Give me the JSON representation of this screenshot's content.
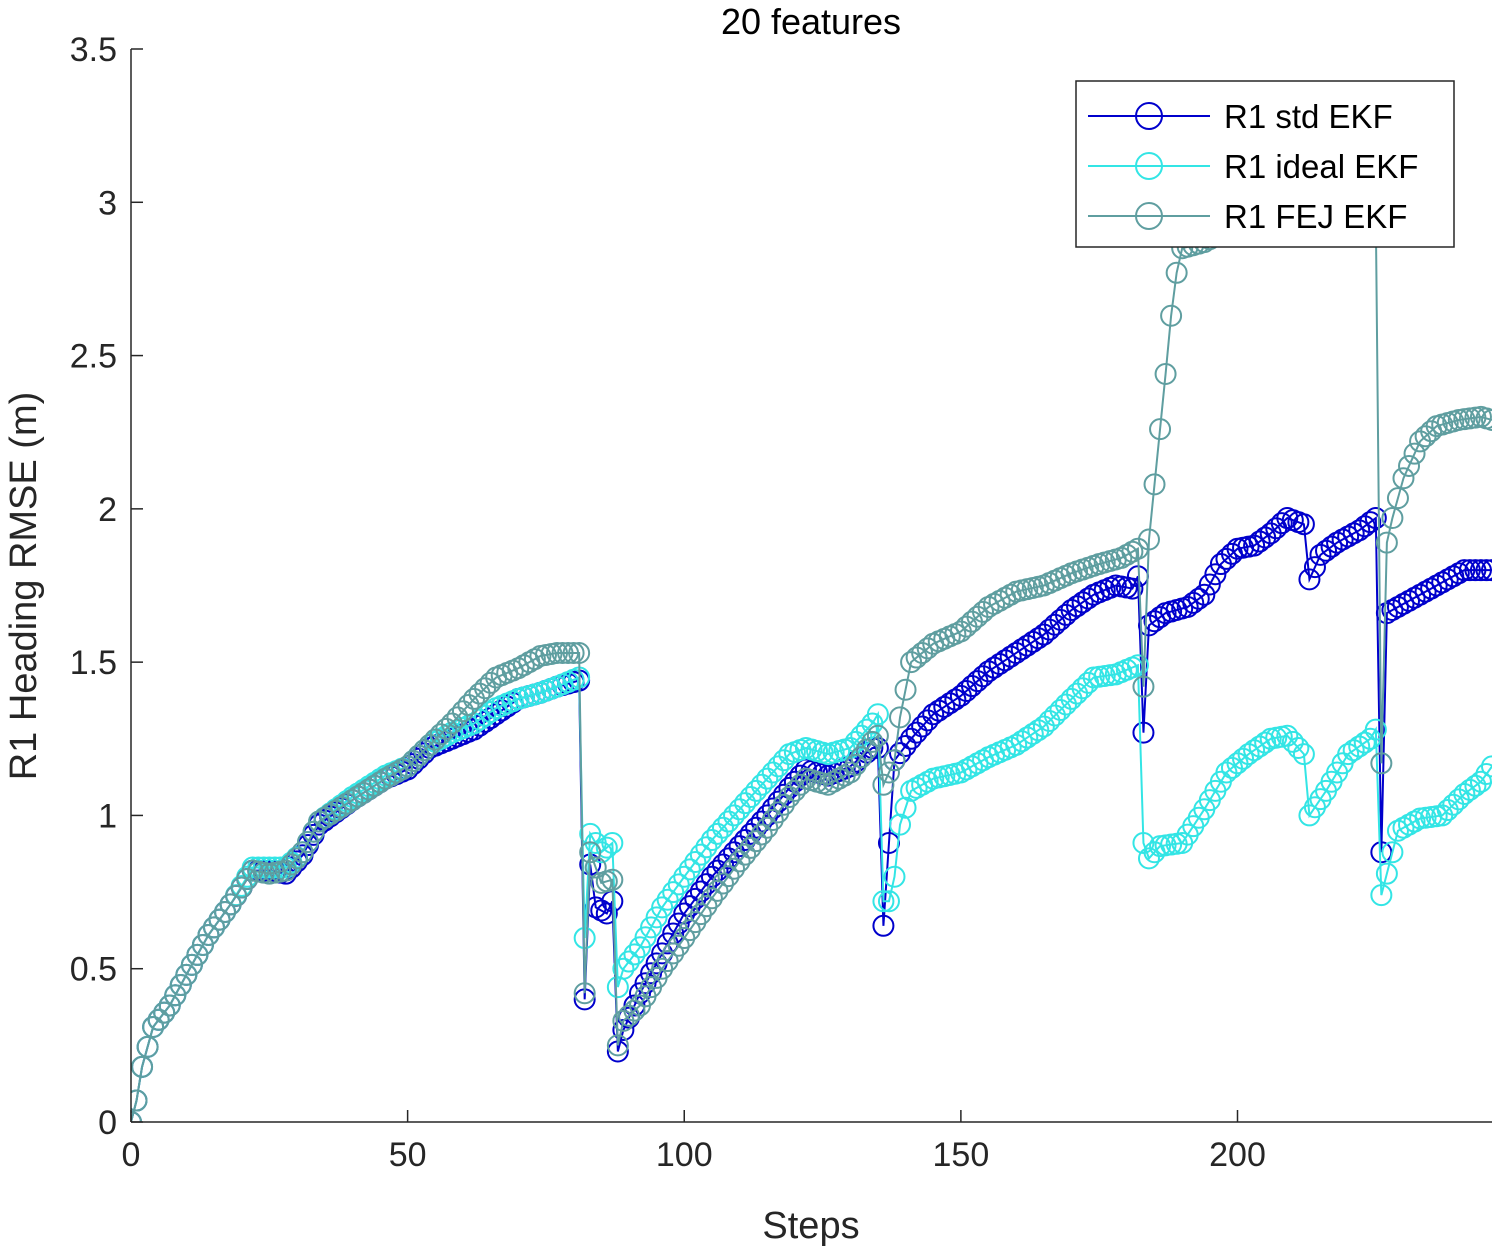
{
  "chart_data": {
    "type": "line",
    "title": "20 features",
    "xlabel": "Steps",
    "ylabel": "R1 Heading RMSE (m)",
    "xlim": [
      0,
      246
    ],
    "ylim": [
      0,
      3.5
    ],
    "xticks": [
      0,
      50,
      100,
      150,
      200
    ],
    "xtick_labels": [
      "0",
      "50",
      "100",
      "150",
      "200"
    ],
    "yticks": [
      0,
      0.5,
      1,
      1.5,
      2,
      2.5,
      3,
      3.5
    ],
    "ytick_labels": [
      "0",
      "0.5",
      "1",
      "1.5",
      "2",
      "2.5",
      "3",
      "3.5"
    ],
    "grid": false,
    "legend_position": "top-right",
    "marker": "circle",
    "series": [
      {
        "name": "R1 std EKF",
        "color": "#0000cc",
        "knots": [
          [
            0,
            0
          ],
          [
            1,
            0.07
          ],
          [
            2,
            0.18
          ],
          [
            4,
            0.31
          ],
          [
            7,
            0.38
          ],
          [
            10,
            0.48
          ],
          [
            14,
            0.61
          ],
          [
            18,
            0.71
          ],
          [
            22,
            0.82
          ],
          [
            25,
            0.82
          ],
          [
            28,
            0.81
          ],
          [
            31,
            0.87
          ],
          [
            34,
            0.97
          ],
          [
            40,
            1.05
          ],
          [
            46,
            1.12
          ],
          [
            50,
            1.15
          ],
          [
            54,
            1.22
          ],
          [
            58,
            1.25
          ],
          [
            62,
            1.28
          ],
          [
            66,
            1.33
          ],
          [
            70,
            1.38
          ],
          [
            74,
            1.4
          ],
          [
            77,
            1.42
          ],
          [
            81,
            1.44
          ],
          [
            82,
            0.4
          ],
          [
            83,
            0.84
          ],
          [
            84,
            0.7
          ],
          [
            86,
            0.68
          ],
          [
            87,
            0.72
          ],
          [
            88,
            0.23
          ],
          [
            89,
            0.3
          ],
          [
            92,
            0.42
          ],
          [
            96,
            0.55
          ],
          [
            100,
            0.68
          ],
          [
            105,
            0.8
          ],
          [
            110,
            0.9
          ],
          [
            115,
            1.0
          ],
          [
            119,
            1.09
          ],
          [
            122,
            1.15
          ],
          [
            126,
            1.13
          ],
          [
            130,
            1.16
          ],
          [
            134,
            1.22
          ],
          [
            135,
            1.22
          ],
          [
            136,
            0.64
          ],
          [
            138,
            1.18
          ],
          [
            141,
            1.25
          ],
          [
            145,
            1.33
          ],
          [
            150,
            1.39
          ],
          [
            155,
            1.47
          ],
          [
            160,
            1.53
          ],
          [
            165,
            1.59
          ],
          [
            170,
            1.67
          ],
          [
            174,
            1.72
          ],
          [
            178,
            1.75
          ],
          [
            181,
            1.74
          ],
          [
            182,
            1.78
          ],
          [
            183,
            1.27
          ],
          [
            184,
            1.62
          ],
          [
            187,
            1.66
          ],
          [
            191,
            1.68
          ],
          [
            194,
            1.72
          ],
          [
            197,
            1.82
          ],
          [
            200,
            1.87
          ],
          [
            203,
            1.88
          ],
          [
            206,
            1.92
          ],
          [
            209,
            1.97
          ],
          [
            212,
            1.95
          ],
          [
            213,
            1.77
          ],
          [
            215,
            1.85
          ],
          [
            218,
            1.89
          ],
          [
            222,
            1.93
          ],
          [
            225,
            1.97
          ],
          [
            226,
            0.88
          ],
          [
            227,
            1.66
          ],
          [
            231,
            1.7
          ],
          [
            236,
            1.75
          ],
          [
            241,
            1.8
          ],
          [
            246,
            1.8
          ]
        ]
      },
      {
        "name": "R1 ideal EKF",
        "color": "#33e5e5",
        "knots": [
          [
            0,
            0
          ],
          [
            1,
            0.07
          ],
          [
            2,
            0.18
          ],
          [
            4,
            0.31
          ],
          [
            7,
            0.38
          ],
          [
            10,
            0.48
          ],
          [
            14,
            0.61
          ],
          [
            18,
            0.71
          ],
          [
            22,
            0.83
          ],
          [
            25,
            0.83
          ],
          [
            28,
            0.83
          ],
          [
            31,
            0.88
          ],
          [
            34,
            0.98
          ],
          [
            40,
            1.06
          ],
          [
            46,
            1.13
          ],
          [
            50,
            1.16
          ],
          [
            54,
            1.23
          ],
          [
            58,
            1.27
          ],
          [
            62,
            1.3
          ],
          [
            66,
            1.35
          ],
          [
            70,
            1.38
          ],
          [
            74,
            1.4
          ],
          [
            77,
            1.42
          ],
          [
            81,
            1.45
          ],
          [
            82,
            0.6
          ],
          [
            83,
            0.94
          ],
          [
            85,
            0.88
          ],
          [
            87,
            0.91
          ],
          [
            88,
            0.44
          ],
          [
            89,
            0.5
          ],
          [
            92,
            0.57
          ],
          [
            96,
            0.7
          ],
          [
            100,
            0.8
          ],
          [
            105,
            0.92
          ],
          [
            110,
            1.02
          ],
          [
            115,
            1.12
          ],
          [
            119,
            1.2
          ],
          [
            122,
            1.22
          ],
          [
            126,
            1.2
          ],
          [
            130,
            1.22
          ],
          [
            134,
            1.3
          ],
          [
            135,
            1.33
          ],
          [
            136,
            0.72
          ],
          [
            137,
            0.72
          ],
          [
            138,
            0.8
          ],
          [
            139,
            0.97
          ],
          [
            141,
            1.08
          ],
          [
            145,
            1.12
          ],
          [
            150,
            1.14
          ],
          [
            155,
            1.19
          ],
          [
            160,
            1.23
          ],
          [
            165,
            1.29
          ],
          [
            170,
            1.38
          ],
          [
            174,
            1.45
          ],
          [
            178,
            1.46
          ],
          [
            182,
            1.49
          ],
          [
            183,
            0.91
          ],
          [
            184,
            0.86
          ],
          [
            186,
            0.9
          ],
          [
            190,
            0.91
          ],
          [
            194,
            1.02
          ],
          [
            198,
            1.14
          ],
          [
            202,
            1.2
          ],
          [
            206,
            1.25
          ],
          [
            209,
            1.26
          ],
          [
            212,
            1.2
          ],
          [
            213,
            1.0
          ],
          [
            216,
            1.08
          ],
          [
            220,
            1.2
          ],
          [
            224,
            1.25
          ],
          [
            225,
            1.28
          ],
          [
            226,
            0.74
          ],
          [
            227,
            0.81
          ],
          [
            229,
            0.95
          ],
          [
            233,
            0.99
          ],
          [
            237,
            1.0
          ],
          [
            241,
            1.07
          ],
          [
            244,
            1.11
          ],
          [
            246,
            1.16
          ]
        ]
      },
      {
        "name": "R1 FEJ EKF",
        "color": "#5f9ea0",
        "knots": [
          [
            0,
            0
          ],
          [
            1,
            0.07
          ],
          [
            2,
            0.18
          ],
          [
            4,
            0.31
          ],
          [
            7,
            0.38
          ],
          [
            10,
            0.48
          ],
          [
            14,
            0.61
          ],
          [
            18,
            0.71
          ],
          [
            22,
            0.82
          ],
          [
            25,
            0.81
          ],
          [
            28,
            0.82
          ],
          [
            31,
            0.88
          ],
          [
            34,
            0.98
          ],
          [
            40,
            1.05
          ],
          [
            46,
            1.12
          ],
          [
            50,
            1.16
          ],
          [
            54,
            1.23
          ],
          [
            58,
            1.3
          ],
          [
            62,
            1.38
          ],
          [
            66,
            1.45
          ],
          [
            70,
            1.48
          ],
          [
            74,
            1.52
          ],
          [
            77,
            1.53
          ],
          [
            81,
            1.53
          ],
          [
            82,
            0.42
          ],
          [
            83,
            0.88
          ],
          [
            85,
            0.78
          ],
          [
            87,
            0.79
          ],
          [
            88,
            0.25
          ],
          [
            89,
            0.33
          ],
          [
            92,
            0.38
          ],
          [
            96,
            0.5
          ],
          [
            100,
            0.6
          ],
          [
            105,
            0.73
          ],
          [
            110,
            0.85
          ],
          [
            115,
            0.96
          ],
          [
            119,
            1.06
          ],
          [
            122,
            1.12
          ],
          [
            126,
            1.1
          ],
          [
            130,
            1.14
          ],
          [
            134,
            1.24
          ],
          [
            135,
            1.26
          ],
          [
            136,
            1.1
          ],
          [
            138,
            1.18
          ],
          [
            139,
            1.32
          ],
          [
            141,
            1.5
          ],
          [
            145,
            1.56
          ],
          [
            150,
            1.6
          ],
          [
            155,
            1.68
          ],
          [
            160,
            1.73
          ],
          [
            165,
            1.75
          ],
          [
            170,
            1.79
          ],
          [
            175,
            1.82
          ],
          [
            179,
            1.84
          ],
          [
            182,
            1.87
          ],
          [
            183,
            1.42
          ],
          [
            184,
            1.9
          ],
          [
            185,
            2.08
          ],
          [
            186,
            2.26
          ],
          [
            187,
            2.44
          ],
          [
            188,
            2.63
          ],
          [
            189,
            2.77
          ],
          [
            190,
            2.85
          ],
          [
            192,
            2.86
          ],
          [
            194,
            2.87
          ],
          [
            196,
            2.89
          ],
          [
            197,
            2.95
          ],
          [
            225,
            2.95
          ],
          [
            226,
            1.17
          ],
          [
            227,
            1.89
          ],
          [
            228,
            1.97
          ],
          [
            230,
            2.1
          ],
          [
            233,
            2.22
          ],
          [
            236,
            2.27
          ],
          [
            240,
            2.29
          ],
          [
            244,
            2.3
          ],
          [
            246,
            2.29
          ]
        ]
      }
    ]
  }
}
